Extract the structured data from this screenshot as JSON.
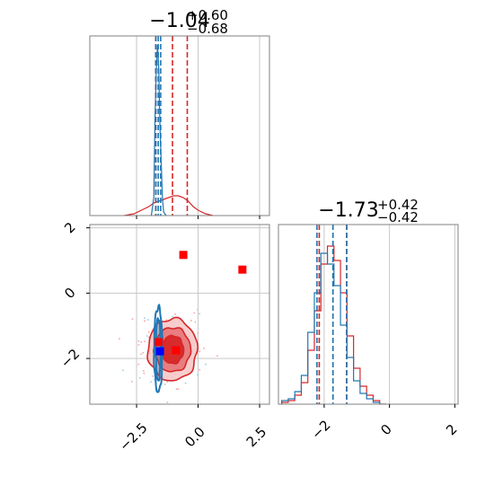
{
  "colors": {
    "red": "#d62728",
    "red_fill_dark": "#d62728",
    "red_fill_mid": "#e8787a",
    "red_fill_light": "#f6c8c8",
    "blue": "#1f77b4",
    "marker_red": "#ff0000",
    "marker_blue": "#0000ff",
    "grid": "#c8c8c8",
    "axis": "#808080"
  },
  "chart_data": [
    {
      "type": "histogram",
      "panel": "top-left",
      "title": {
        "median": "−1.04",
        "plus": "+0.60",
        "minus": "−0.68"
      },
      "x_range": [
        -4.4,
        2.9
      ],
      "y_range": [
        0,
        1
      ],
      "grid": true,
      "series": [
        {
          "color": "red",
          "x": [
            -3.0,
            -2.6,
            -2.3,
            -2.0,
            -1.8,
            -1.6,
            -1.4,
            -1.2,
            -1.0,
            -0.8,
            -0.6,
            -0.4,
            -0.2,
            0.0,
            0.3,
            0.6
          ],
          "values": [
            0.0,
            0.01,
            0.03,
            0.05,
            0.07,
            0.08,
            0.09,
            0.1,
            0.11,
            0.11,
            0.1,
            0.08,
            0.05,
            0.03,
            0.01,
            0.0
          ]
        },
        {
          "color": "blue",
          "x": [
            -1.9,
            -1.8,
            -1.75,
            -1.7,
            -1.65,
            -1.6,
            -1.55,
            -1.5,
            -1.45,
            -1.4,
            -1.3
          ],
          "values": [
            0.0,
            0.1,
            0.55,
            0.8,
            0.95,
            0.82,
            0.5,
            0.3,
            0.1,
            0.02,
            0.0
          ]
        }
      ],
      "quantile_lines": {
        "red": [
          -1.72,
          -1.04,
          -0.44
        ],
        "blue": [
          -1.72,
          -1.62,
          -1.52
        ]
      }
    },
    {
      "type": "scatter-contour",
      "panel": "bottom-left",
      "x_range": [
        -4.4,
        2.9
      ],
      "y_range": [
        -3.4,
        2.1
      ],
      "x_ticks": [
        "−2.5",
        "0.0",
        "2.5"
      ],
      "x_tick_values": [
        -2.5,
        0.0,
        2.5
      ],
      "y_ticks": [
        "−2",
        "0",
        "2"
      ],
      "y_tick_values": [
        -2,
        0,
        2
      ],
      "grid": true,
      "red_contour_center": [
        -1.04,
        -1.73
      ],
      "red_contour_radii": [
        [
          1.0,
          0.95
        ],
        [
          0.73,
          0.68
        ],
        [
          0.45,
          0.43
        ]
      ],
      "blue_contour_center": [
        -1.62,
        -1.73
      ],
      "blue_contour_radii": [
        [
          0.17,
          1.3
        ],
        [
          0.1,
          0.95
        ]
      ],
      "markers": [
        {
          "color": "marker_red",
          "x": -0.6,
          "y": 1.17
        },
        {
          "color": "marker_red",
          "x": 1.8,
          "y": 0.72
        },
        {
          "color": "marker_red",
          "x": -1.6,
          "y": -1.5
        },
        {
          "color": "marker_red",
          "x": -0.9,
          "y": -1.75
        },
        {
          "color": "marker_blue",
          "x": -1.55,
          "y": -1.78
        }
      ]
    },
    {
      "type": "histogram",
      "panel": "bottom-right",
      "title": {
        "median": "−1.73",
        "plus": "+0.42",
        "minus": "−0.42"
      },
      "x_range": [
        -3.4,
        2.1
      ],
      "y_range": [
        0,
        1
      ],
      "x_ticks": [
        "−2",
        "0",
        "2"
      ],
      "x_tick_values": [
        -2,
        0,
        2
      ],
      "grid": true,
      "series": [
        {
          "color": "red",
          "x": [
            -3.2,
            -3.0,
            -2.8,
            -2.6,
            -2.4,
            -2.2,
            -2.0,
            -1.8,
            -1.6,
            -1.4,
            -1.2,
            -1.0,
            -0.8,
            -0.6,
            -0.4,
            -0.2
          ],
          "values": [
            0.01,
            0.02,
            0.05,
            0.12,
            0.3,
            0.52,
            0.78,
            0.88,
            0.8,
            0.62,
            0.38,
            0.2,
            0.1,
            0.05,
            0.02,
            0.0
          ]
        },
        {
          "color": "blue",
          "x": [
            -3.2,
            -3.0,
            -2.8,
            -2.6,
            -2.4,
            -2.2,
            -2.0,
            -1.8,
            -1.6,
            -1.4,
            -1.2,
            -1.0,
            -0.8,
            -0.6,
            -0.4,
            -0.2
          ],
          "values": [
            0.02,
            0.03,
            0.07,
            0.16,
            0.4,
            0.62,
            0.84,
            0.78,
            0.66,
            0.44,
            0.26,
            0.13,
            0.06,
            0.03,
            0.01,
            0.0
          ]
        }
      ],
      "quantile_lines": {
        "red": [
          -2.15,
          -1.73,
          -1.31
        ],
        "blue": [
          -2.22,
          -1.73,
          -1.31
        ]
      }
    }
  ]
}
